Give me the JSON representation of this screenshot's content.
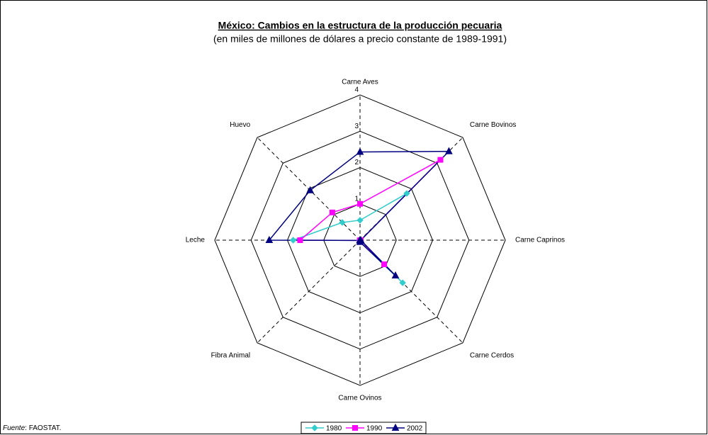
{
  "chart_data": {
    "type": "radar",
    "title": "México: Cambios en la estructura de la producción pecuaria",
    "subtitle": "(en miles de millones de dólares a precio constante de 1989-1991)",
    "categories": [
      "Carne Aves",
      "Carne Bovinos",
      "Carne Caprinos",
      "Carne Cerdos",
      "Carne Ovinos",
      "Fibra Animal",
      "Leche",
      "Huevo"
    ],
    "series": [
      {
        "name": "1980",
        "color": "#33cccc",
        "marker": "diamond",
        "values": [
          0.55,
          1.82,
          0.02,
          1.66,
          0.05,
          0.01,
          1.84,
          0.69
        ]
      },
      {
        "name": "1990",
        "color": "#ff00ff",
        "marker": "square",
        "values": [
          1.0,
          3.13,
          0.02,
          0.94,
          0.05,
          0.01,
          1.65,
          1.08
        ]
      },
      {
        "name": "2002",
        "color": "#000080",
        "marker": "triangle",
        "values": [
          2.43,
          3.46,
          0.02,
          1.38,
          0.05,
          0.01,
          2.5,
          1.94
        ]
      }
    ],
    "rlim": [
      0,
      4
    ],
    "rticks": [
      1,
      2,
      3,
      4
    ],
    "source": {
      "label": "Fuente",
      "text": ": FAOSTAT."
    }
  }
}
